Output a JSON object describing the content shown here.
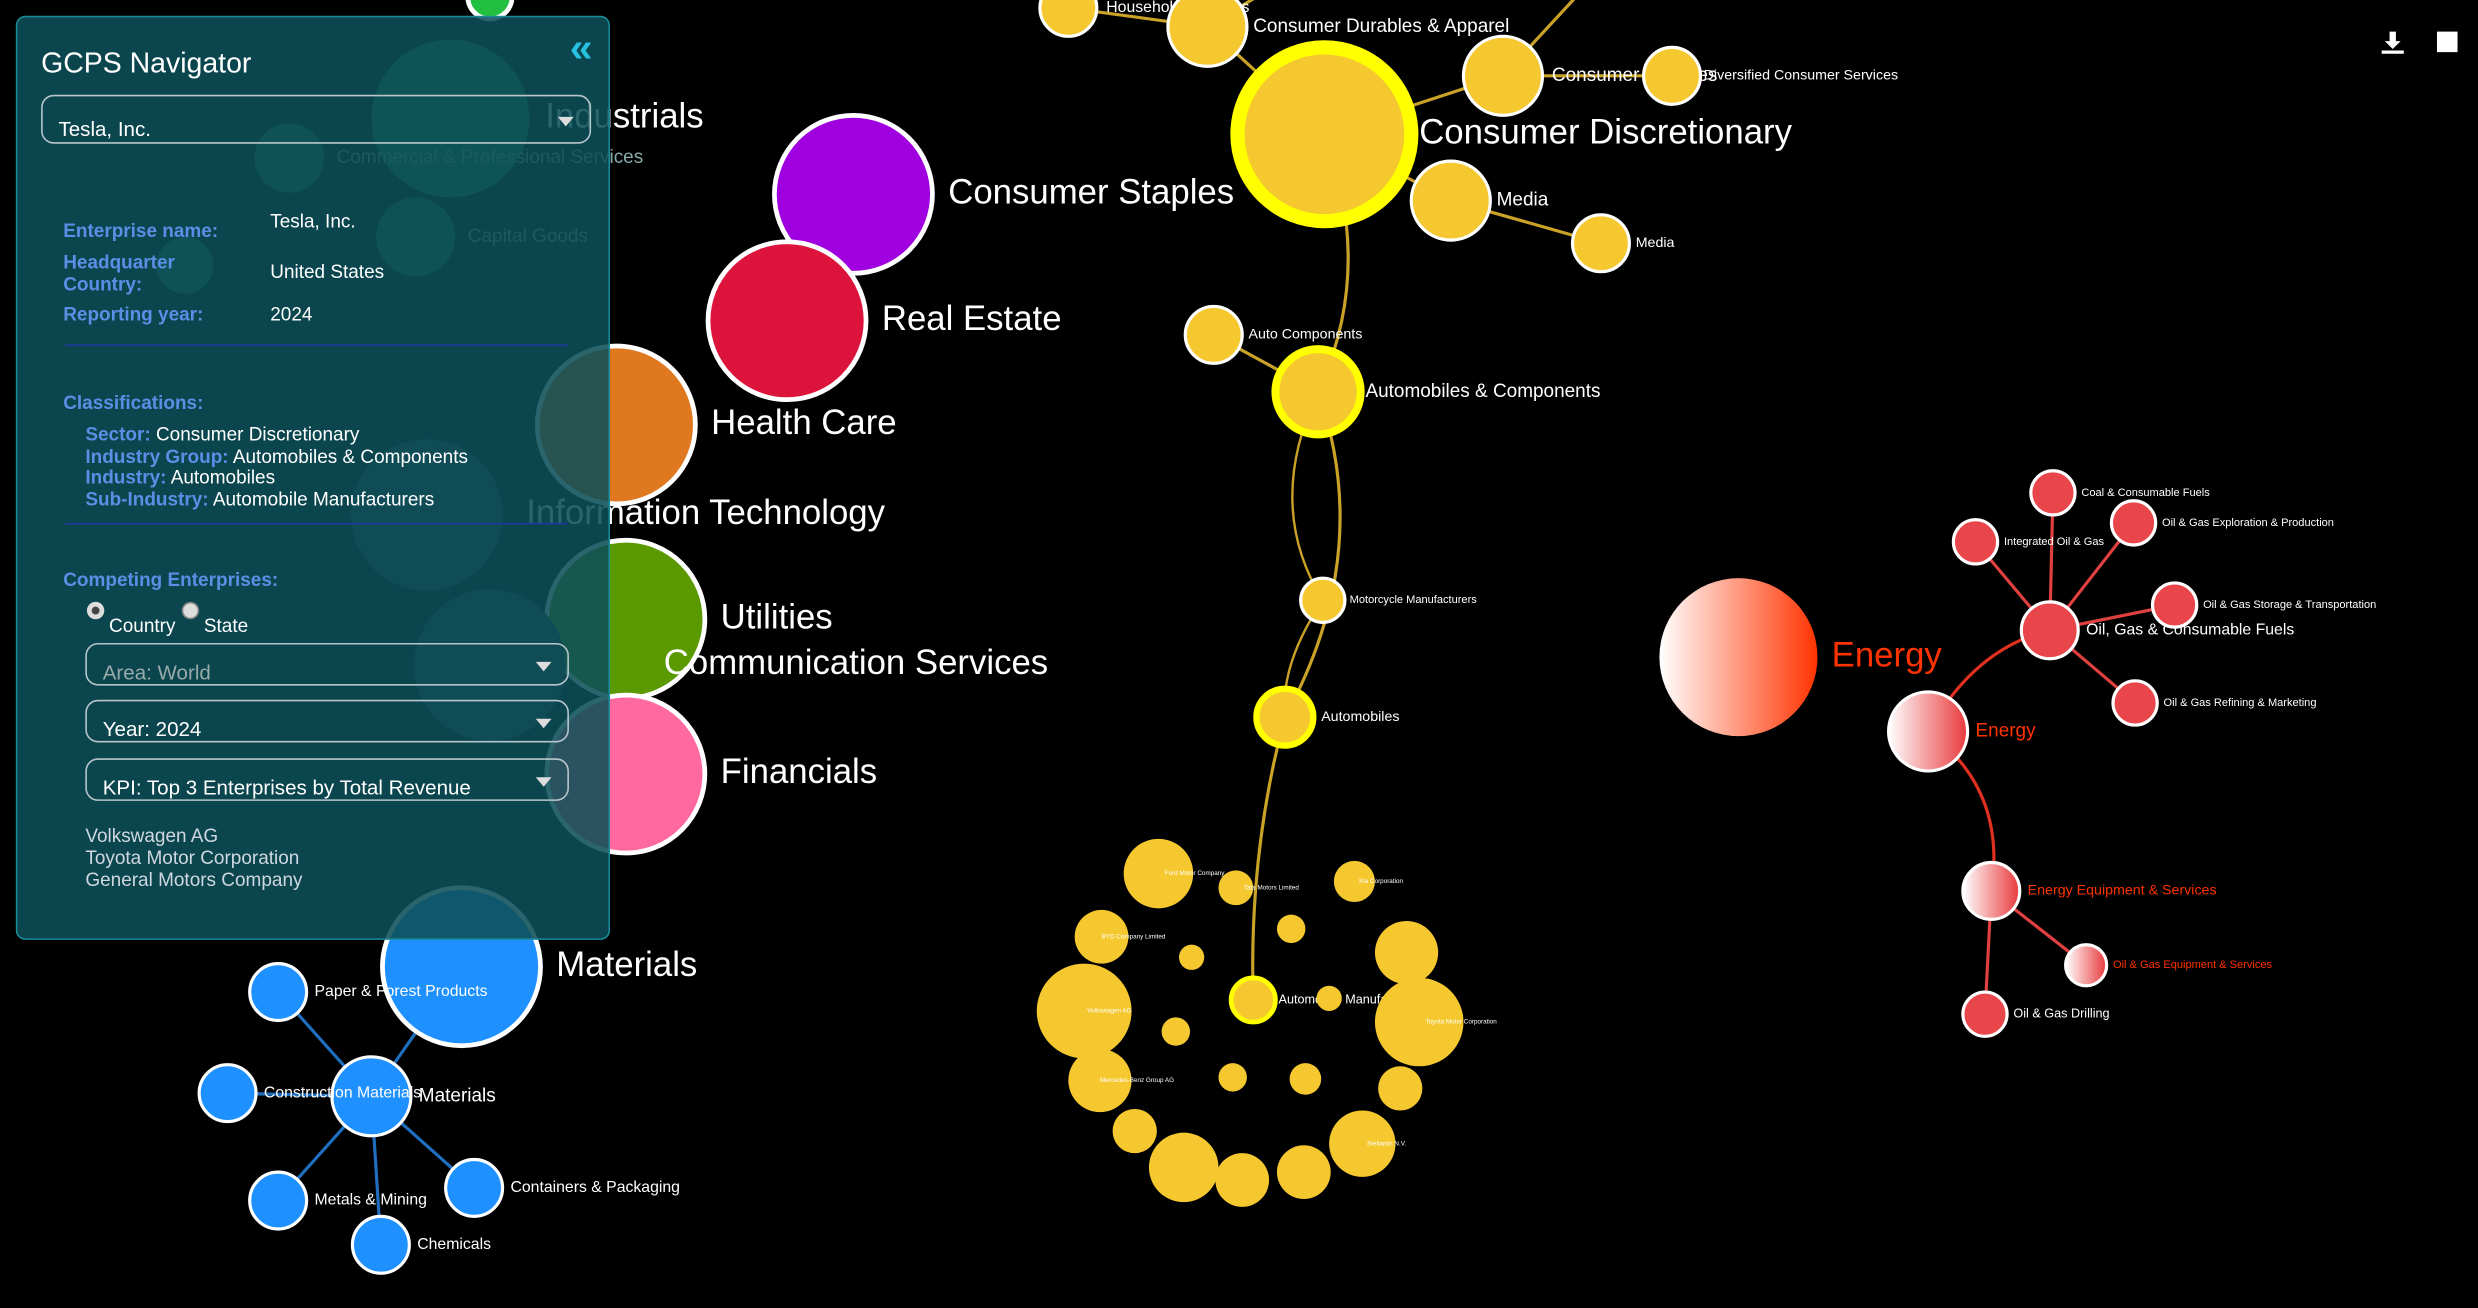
{
  "panel": {
    "title": "GCPS Navigator",
    "enterprise_select": "Tesla, Inc.",
    "fields": [
      {
        "label": "Enterprise name:",
        "value": "Tesla, Inc."
      },
      {
        "label": "Headquarter Country:",
        "value": "United States"
      },
      {
        "label": "Reporting year:",
        "value": "2024"
      }
    ],
    "classifications": {
      "title": "Classifications:",
      "items": [
        {
          "label": "Sector:",
          "value": "Consumer Discretionary"
        },
        {
          "label": "Industry Group:",
          "value": "Automobiles & Components"
        },
        {
          "label": "Industry:",
          "value": "Automobiles"
        },
        {
          "label": "Sub-Industry:",
          "value": "Automobile Manufacturers"
        }
      ]
    },
    "competing": {
      "title": "Competing Enterprises:",
      "radios": [
        "Country",
        "State"
      ],
      "selects": [
        "Area: World",
        "Year: 2024",
        "KPI: Top 3 Enterprises by Total Revenue"
      ],
      "results": [
        "Volkswagen AG",
        "Toyota Motor Corporation",
        "General Motors Company"
      ]
    }
  },
  "graph": {
    "nodes": [
      {
        "label": "Industrials"
      },
      {
        "label": "Consumer Staples"
      },
      {
        "label": "Real Estate"
      },
      {
        "label": "Health Care"
      },
      {
        "label": "Information Technology"
      },
      {
        "label": "Utilities"
      },
      {
        "label": "Communication Services"
      },
      {
        "label": "Financials"
      },
      {
        "label": "Materials"
      },
      {
        "label": "Consumer Discretionary"
      },
      {
        "label": "Energy"
      },
      {
        "label": "Household Durables"
      },
      {
        "label": "Consumer Durables & Apparel"
      },
      {
        "label": "Consumer Services"
      },
      {
        "label": "Diversified Consumer Services"
      },
      {
        "label": "Media"
      },
      {
        "label": "Media"
      },
      {
        "label": "Auto Components"
      },
      {
        "label": "Automobiles & Components"
      },
      {
        "label": "Motorcycle Manufacturers"
      },
      {
        "label": "Automobiles"
      },
      {
        "label": "Automobile Manufacturers"
      },
      {
        "label": "Energy"
      },
      {
        "label": "Oil, Gas & Consumable Fuels"
      },
      {
        "label": "Coal & Consumable Fuels"
      },
      {
        "label": "Integrated Oil & Gas"
      },
      {
        "label": "Oil & Gas Exploration & Production"
      },
      {
        "label": "Oil & Gas Storage & Transportation"
      },
      {
        "label": "Oil & Gas Refining & Marketing"
      },
      {
        "label": "Energy Equipment & Services"
      },
      {
        "label": "Oil & Gas Equipment & Services"
      },
      {
        "label": "Oil & Gas Drilling"
      },
      {
        "label": "Materials"
      },
      {
        "label": "Paper & Forest Products"
      },
      {
        "label": "Construction Materials"
      },
      {
        "label": "Metals & Mining"
      },
      {
        "label": "Containers & Packaging"
      },
      {
        "label": "Chemicals"
      },
      {
        "label": "Commercial & Professional Services"
      },
      {
        "label": "Capital Goods"
      },
      {
        "label": "Ford Motor Company"
      },
      {
        "label": "Tata Motors Limited"
      },
      {
        "label": "Kia Corporation"
      },
      {
        "label": "BYD Company Limited"
      },
      {
        "label": "Volkswagen AG"
      },
      {
        "label": "Toyota Motor Corporation"
      },
      {
        "label": "Mercedes-Benz Group AG"
      },
      {
        "label": "Stellantis N.V."
      }
    ]
  }
}
